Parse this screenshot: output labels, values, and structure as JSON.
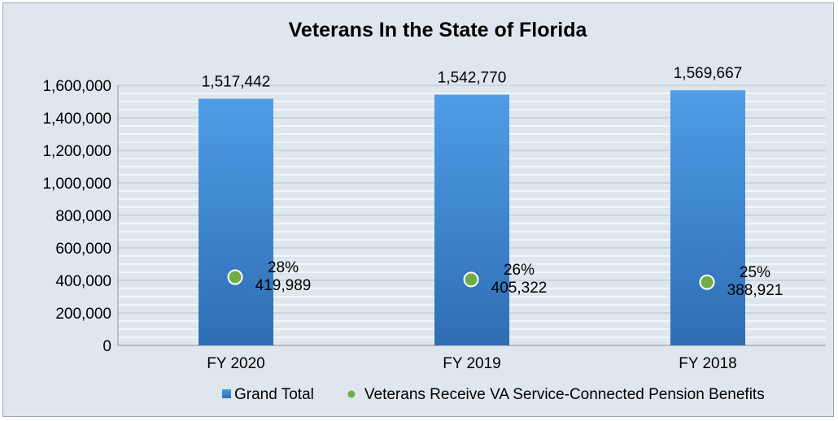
{
  "chart_data": {
    "type": "bar",
    "title": "Veterans In the State of Florida",
    "categories": [
      "FY 2020",
      "FY 2019",
      "FY 2018"
    ],
    "series": [
      {
        "name": "Grand Total",
        "kind": "bar",
        "values": [
          1517442,
          1542770,
          1569667
        ],
        "labels": [
          "1,517,442",
          "1,542,770",
          "1,569,667"
        ]
      },
      {
        "name": "Veterans Receive VA Service-Connected Pension Benefits",
        "kind": "scatter",
        "values": [
          419989,
          405322,
          388921
        ],
        "labels": [
          "419,989",
          "405,322",
          "388,921"
        ],
        "percents": [
          "28%",
          "26%",
          "25%"
        ]
      }
    ],
    "ylim": [
      0,
      1600000
    ],
    "yticks": [
      0,
      200000,
      400000,
      600000,
      800000,
      1000000,
      1200000,
      1400000,
      1600000
    ],
    "ytick_labels": [
      "0",
      "200,000",
      "400,000",
      "600,000",
      "800,000",
      "1,000,000",
      "1,200,000",
      "1,400,000",
      "1,600,000"
    ],
    "grid": true,
    "legend": "bottom",
    "colors": {
      "bar_top": "#4e9de6",
      "bar_bottom": "#2f6db3",
      "marker": "#70ad47",
      "marker_edge": "#ffffff",
      "background": "#dfe7ee"
    }
  }
}
